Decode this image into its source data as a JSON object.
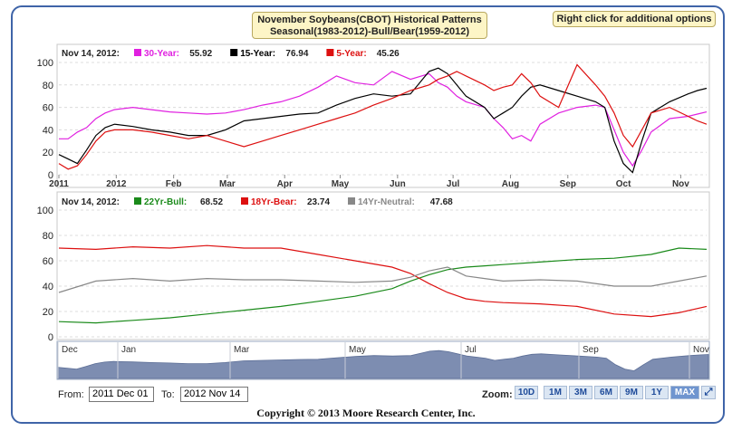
{
  "title_lines": [
    "November Soybeans(CBOT) Historical Patterns",
    "Seasonal(1983-2012)-Bull/Bear(1959-2012)"
  ],
  "options_label": "Right click for additional options",
  "top_legend": {
    "date": "Nov 14, 2012:",
    "items": [
      {
        "label": "30-Year:",
        "value": "55.92",
        "color": "#e020e0"
      },
      {
        "label": "15-Year:",
        "value": "76.94",
        "color": "#000000"
      },
      {
        "label": "5-Year:",
        "value": "45.26",
        "color": "#dd1010"
      }
    ]
  },
  "bottom_legend": {
    "date": "Nov 14, 2012:",
    "items": [
      {
        "label": "22Yr-Bull:",
        "value": "68.52",
        "color": "#1a8a1a"
      },
      {
        "label": "18Yr-Bear:",
        "value": "23.74",
        "color": "#dd1010"
      },
      {
        "label": "14Yr-Neutral:",
        "value": "47.68",
        "color": "#888888"
      }
    ]
  },
  "navigator_labels": [
    "Dec",
    "Jan",
    "Mar",
    "May",
    "Jul",
    "Sep",
    "Nov"
  ],
  "controls": {
    "from_label": "From:",
    "from_value": "2011 Dec 01",
    "to_label": "To:",
    "to_value": "2012 Nov 14",
    "zoom_label": "Zoom:",
    "zoom_buttons": [
      "10D",
      "1M",
      "3M",
      "6M",
      "9M",
      "1Y",
      "MAX"
    ],
    "active_zoom": "MAX"
  },
  "copyright": "Copyright © 2013 Moore Research Center, Inc.",
  "chart_data": [
    {
      "type": "line",
      "ylim": [
        0,
        100
      ],
      "yticks": [
        0,
        20,
        40,
        60,
        80,
        100
      ],
      "xtick_labels": [
        "2011",
        "2012",
        "Feb",
        "Mar",
        "Apr",
        "May",
        "Jun",
        "Jul",
        "Aug",
        "Sep",
        "Oct",
        "Nov"
      ],
      "x_positions_days": [
        0,
        31,
        62,
        91,
        122,
        152,
        183,
        213,
        244,
        275,
        305,
        336
      ],
      "x_range_days": [
        0,
        350
      ],
      "series": [
        {
          "name": "30-Year",
          "color": "#e020e0",
          "x": [
            0,
            5,
            10,
            15,
            20,
            25,
            30,
            40,
            50,
            60,
            70,
            80,
            90,
            100,
            110,
            120,
            130,
            140,
            150,
            160,
            170,
            180,
            190,
            200,
            205,
            210,
            215,
            220,
            230,
            235,
            240,
            245,
            250,
            255,
            260,
            270,
            280,
            290,
            295,
            300,
            305,
            310,
            315,
            320,
            330,
            340,
            345,
            350
          ],
          "y": [
            32,
            32,
            38,
            42,
            50,
            55,
            58,
            60,
            58,
            56,
            55,
            54,
            55,
            58,
            62,
            65,
            70,
            78,
            88,
            82,
            80,
            92,
            85,
            90,
            82,
            78,
            70,
            65,
            60,
            50,
            42,
            32,
            35,
            30,
            45,
            55,
            60,
            62,
            60,
            40,
            20,
            8,
            22,
            38,
            50,
            52,
            54,
            56
          ]
        },
        {
          "name": "15-Year",
          "color": "#000000",
          "x": [
            0,
            5,
            10,
            15,
            20,
            25,
            30,
            40,
            50,
            60,
            70,
            80,
            90,
            100,
            110,
            120,
            130,
            140,
            150,
            160,
            170,
            180,
            190,
            200,
            205,
            210,
            215,
            220,
            230,
            235,
            240,
            245,
            250,
            255,
            260,
            270,
            280,
            290,
            295,
            300,
            305,
            310,
            315,
            320,
            330,
            340,
            345,
            350
          ],
          "y": [
            18,
            14,
            10,
            22,
            35,
            42,
            45,
            43,
            40,
            38,
            35,
            35,
            40,
            48,
            50,
            52,
            54,
            55,
            62,
            68,
            72,
            70,
            72,
            92,
            95,
            90,
            80,
            70,
            60,
            50,
            55,
            60,
            70,
            78,
            80,
            75,
            70,
            65,
            60,
            30,
            10,
            2,
            30,
            55,
            65,
            72,
            75,
            77
          ]
        },
        {
          "name": "5-Year",
          "color": "#dd1010",
          "x": [
            0,
            5,
            10,
            15,
            20,
            25,
            30,
            40,
            50,
            60,
            70,
            80,
            90,
            100,
            110,
            120,
            130,
            140,
            150,
            160,
            170,
            180,
            190,
            200,
            205,
            210,
            215,
            220,
            230,
            235,
            240,
            245,
            250,
            255,
            260,
            270,
            280,
            290,
            295,
            300,
            305,
            310,
            315,
            320,
            330,
            340,
            345,
            350
          ],
          "y": [
            10,
            5,
            8,
            18,
            30,
            38,
            40,
            40,
            38,
            35,
            32,
            35,
            30,
            25,
            30,
            35,
            40,
            45,
            50,
            55,
            62,
            68,
            75,
            80,
            85,
            88,
            92,
            88,
            80,
            75,
            78,
            80,
            90,
            82,
            70,
            60,
            98,
            80,
            70,
            55,
            35,
            25,
            40,
            55,
            60,
            52,
            48,
            45
          ]
        }
      ]
    },
    {
      "type": "line",
      "ylim": [
        0,
        100
      ],
      "yticks": [
        0,
        20,
        40,
        60,
        80,
        100
      ],
      "x_range_days": [
        0,
        350
      ],
      "series": [
        {
          "name": "22Yr-Bull",
          "color": "#1a8a1a",
          "x": [
            0,
            20,
            40,
            60,
            80,
            100,
            120,
            140,
            160,
            180,
            190,
            200,
            210,
            220,
            230,
            240,
            260,
            280,
            300,
            320,
            335,
            350
          ],
          "y": [
            12,
            11,
            13,
            15,
            18,
            21,
            24,
            28,
            32,
            38,
            44,
            49,
            53,
            55,
            56,
            57,
            59,
            61,
            62,
            65,
            70,
            69
          ]
        },
        {
          "name": "18Yr-Bear",
          "color": "#dd1010",
          "x": [
            0,
            20,
            40,
            60,
            80,
            100,
            120,
            140,
            160,
            180,
            190,
            200,
            210,
            220,
            230,
            240,
            260,
            280,
            300,
            320,
            335,
            350
          ],
          "y": [
            70,
            69,
            71,
            70,
            72,
            70,
            70,
            65,
            60,
            55,
            50,
            42,
            35,
            30,
            28,
            27,
            26,
            24,
            18,
            16,
            19,
            24
          ]
        },
        {
          "name": "14Yr-Neutral",
          "color": "#888888",
          "x": [
            0,
            20,
            40,
            60,
            80,
            100,
            120,
            140,
            160,
            180,
            190,
            200,
            210,
            220,
            230,
            240,
            260,
            280,
            300,
            320,
            335,
            350
          ],
          "y": [
            35,
            44,
            46,
            44,
            46,
            45,
            45,
            44,
            43,
            44,
            47,
            52,
            55,
            48,
            46,
            44,
            45,
            44,
            40,
            40,
            44,
            48
          ]
        }
      ]
    }
  ]
}
